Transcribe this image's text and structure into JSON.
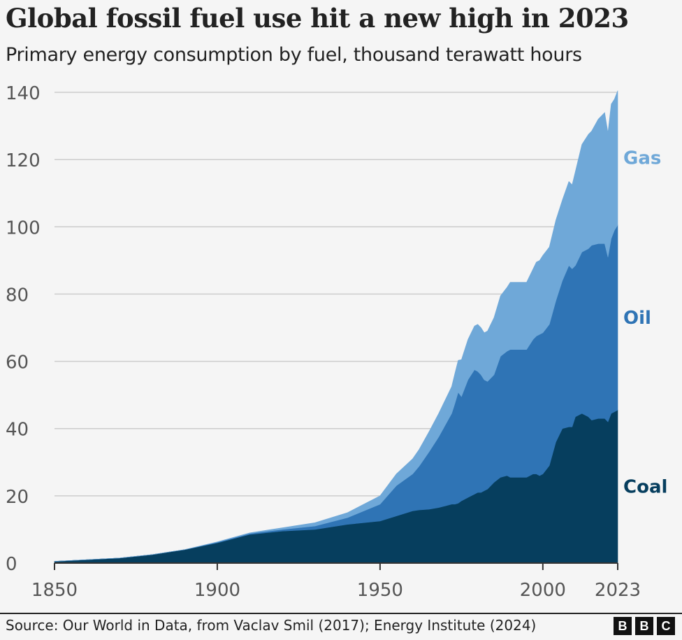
{
  "chart_data": {
    "type": "area",
    "stacked": true,
    "title": "Global fossil fuel use hit a new high in 2023",
    "subtitle": "Primary energy consumption by fuel, thousand terawatt hours",
    "xlabel": "",
    "ylabel": "",
    "xlim": [
      1850,
      2023
    ],
    "ylim": [
      0,
      140
    ],
    "x_ticks": [
      1850,
      1900,
      1950,
      2000,
      2023
    ],
    "y_ticks": [
      0,
      20,
      40,
      60,
      80,
      100,
      120,
      140
    ],
    "grid": true,
    "x": [
      1850,
      1860,
      1870,
      1880,
      1890,
      1900,
      1910,
      1920,
      1930,
      1940,
      1950,
      1955,
      1960,
      1962,
      1965,
      1968,
      1970,
      1972,
      1973,
      1974,
      1975,
      1977,
      1979,
      1980,
      1981,
      1982,
      1983,
      1985,
      1987,
      1989,
      1990,
      1992,
      1995,
      1997,
      1998,
      1999,
      2000,
      2002,
      2004,
      2006,
      2008,
      2009,
      2010,
      2012,
      2014,
      2015,
      2017,
      2019,
      2020,
      2021,
      2022,
      2023
    ],
    "series": [
      {
        "name": "Coal",
        "color": "#063e5e",
        "values": [
          0.5,
          1,
          1.5,
          2.5,
          4,
          6,
          8.5,
          9.5,
          10,
          11.5,
          12.5,
          14,
          15.5,
          15.8,
          16,
          16.5,
          17,
          17.5,
          17.5,
          17.8,
          18.5,
          19.5,
          20.5,
          21,
          21,
          21.5,
          22,
          24,
          25.5,
          26,
          25.5,
          25.5,
          25.5,
          26.5,
          26.5,
          26,
          26.5,
          29,
          36,
          40,
          40.5,
          40.5,
          43.5,
          44.5,
          43.5,
          42.5,
          43,
          43,
          42,
          44.5,
          45,
          45.5
        ]
      },
      {
        "name": "Oil",
        "color": "#2f74b5",
        "values": [
          0,
          0,
          0,
          0,
          0,
          0.2,
          0.3,
          0.5,
          1,
          2,
          5,
          9,
          11,
          13,
          17,
          21,
          24,
          27,
          30,
          33,
          31,
          35,
          37,
          36,
          35,
          33,
          32,
          32,
          36,
          37,
          38,
          38,
          38,
          40,
          41,
          42,
          42,
          42,
          42,
          44,
          48,
          47,
          45,
          48,
          50,
          52,
          52,
          52,
          49,
          52,
          54,
          55
        ]
      },
      {
        "name": "Gas",
        "color": "#6fa8d8",
        "values": [
          0,
          0,
          0,
          0,
          0,
          0.1,
          0.2,
          0.5,
          1,
          1.5,
          2.5,
          3.5,
          4.5,
          5,
          6,
          7,
          7.5,
          8,
          9,
          9.5,
          11,
          12,
          13,
          14,
          14,
          14,
          15,
          17,
          18,
          19,
          20,
          20,
          20,
          21,
          22,
          22,
          23,
          23,
          24,
          24,
          25,
          25,
          28,
          32,
          34,
          34,
          37,
          39,
          37,
          40,
          39,
          40
        ]
      }
    ]
  }
}
